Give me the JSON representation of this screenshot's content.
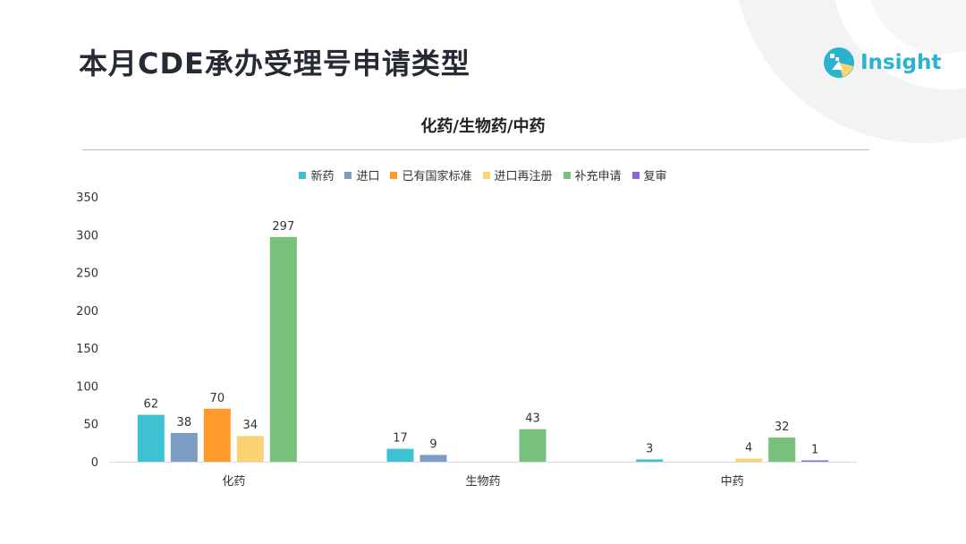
{
  "page": {
    "title": "本月CDE承办受理号申请类型"
  },
  "logo": {
    "text": "Insight"
  },
  "chart_data": {
    "type": "bar",
    "title": "化药/生物药/中药",
    "categories": [
      "化药",
      "生物药",
      "中药"
    ],
    "series": [
      {
        "name": "新药",
        "color": "#3ec1d3",
        "values": [
          62,
          17,
          3
        ]
      },
      {
        "name": "进口",
        "color": "#7b9cc3",
        "values": [
          38,
          9,
          null
        ]
      },
      {
        "name": "已有国家标准",
        "color": "#ff9b2a",
        "values": [
          70,
          null,
          null
        ]
      },
      {
        "name": "进口再注册",
        "color": "#fcd374",
        "values": [
          34,
          null,
          4
        ]
      },
      {
        "name": "补充申请",
        "color": "#79c07c",
        "values": [
          297,
          43,
          32
        ]
      },
      {
        "name": "复审",
        "color": "#8a6bd1",
        "values": [
          null,
          null,
          1
        ]
      }
    ],
    "ylim": [
      0,
      350
    ],
    "yticks": [
      0,
      50,
      100,
      150,
      200,
      250,
      300,
      350
    ],
    "grid": false,
    "legend": "top-center"
  }
}
